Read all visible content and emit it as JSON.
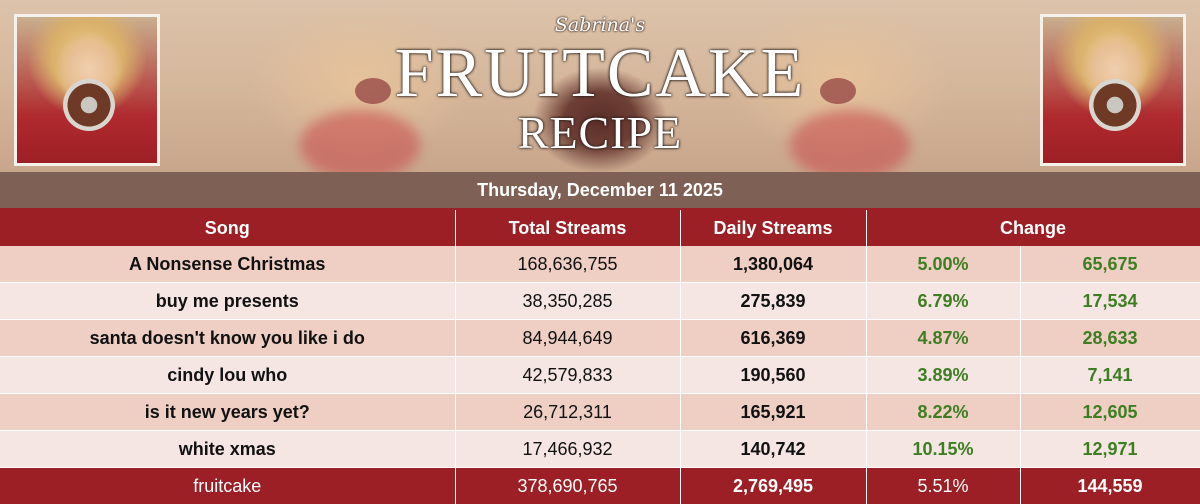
{
  "banner": {
    "script_title": "Sabrina's",
    "main_title": "FRUITCAKE",
    "sub_title": "RECIPE"
  },
  "date": "Thursday, December 11 2025",
  "table": {
    "headers": {
      "song": "Song",
      "total_streams": "Total Streams",
      "daily_streams": "Daily Streams",
      "change": "Change"
    },
    "rows": [
      {
        "song": "A Nonsense Christmas",
        "total": "168,636,755",
        "daily": "1,380,064",
        "pct": "5.00%",
        "change": "65,675"
      },
      {
        "song": "buy me presents",
        "total": "38,350,285",
        "daily": "275,839",
        "pct": "6.79%",
        "change": "17,534"
      },
      {
        "song": "santa doesn't know you like i do",
        "total": "84,944,649",
        "daily": "616,369",
        "pct": "4.87%",
        "change": "28,633"
      },
      {
        "song": "cindy lou who",
        "total": "42,579,833",
        "daily": "190,560",
        "pct": "3.89%",
        "change": "7,141"
      },
      {
        "song": "is it new years yet?",
        "total": "26,712,311",
        "daily": "165,921",
        "pct": "8.22%",
        "change": "12,605"
      },
      {
        "song": "white xmas",
        "total": "17,466,932",
        "daily": "140,742",
        "pct": "10.15%",
        "change": "12,971"
      }
    ],
    "total_row": {
      "song": "fruitcake",
      "total": "378,690,765",
      "daily": "2,769,495",
      "pct": "5.51%",
      "change": "144,559"
    }
  },
  "colors": {
    "header_red": "#9b1f24",
    "date_bar": "#7e6055",
    "row_odd": "#efcfc4",
    "row_even": "#f6e6e3",
    "positive_green": "#3d7e22"
  }
}
